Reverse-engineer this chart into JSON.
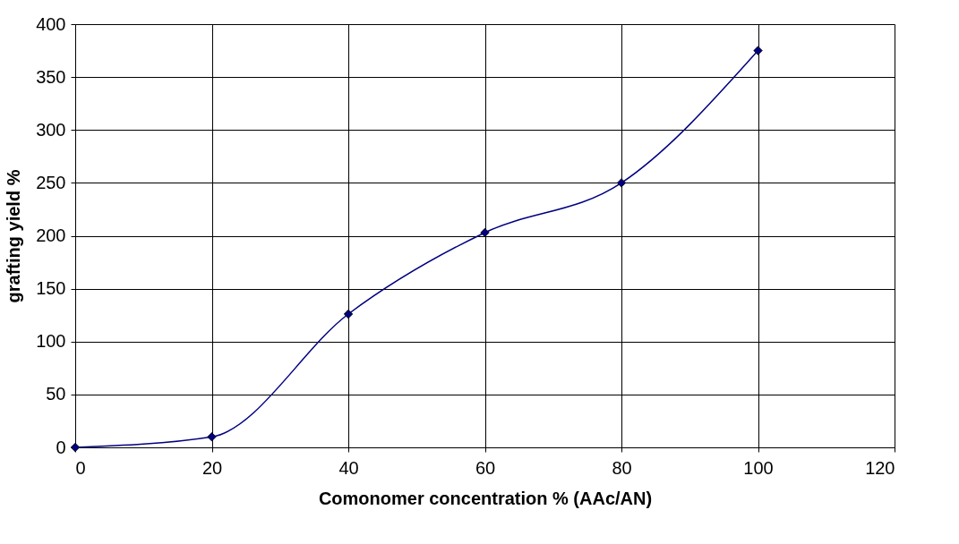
{
  "chart_data": {
    "type": "line",
    "xlabel": "Comonomer concentration % (AAc/AN)",
    "ylabel": "grafting yield %",
    "x": [
      0,
      20,
      40,
      60,
      80,
      100
    ],
    "series": [
      {
        "color": "#000080",
        "values": [
          0,
          10,
          126,
          203,
          250,
          375
        ]
      }
    ],
    "xlim": [
      0,
      120
    ],
    "xticks": [
      0,
      20,
      40,
      60,
      80,
      100,
      120
    ],
    "ylim": [
      0,
      400
    ],
    "yticks": [
      0,
      50,
      100,
      150,
      200,
      250,
      300,
      350,
      400
    ],
    "grid": true,
    "marker": "diamond",
    "line_style": "solid"
  }
}
